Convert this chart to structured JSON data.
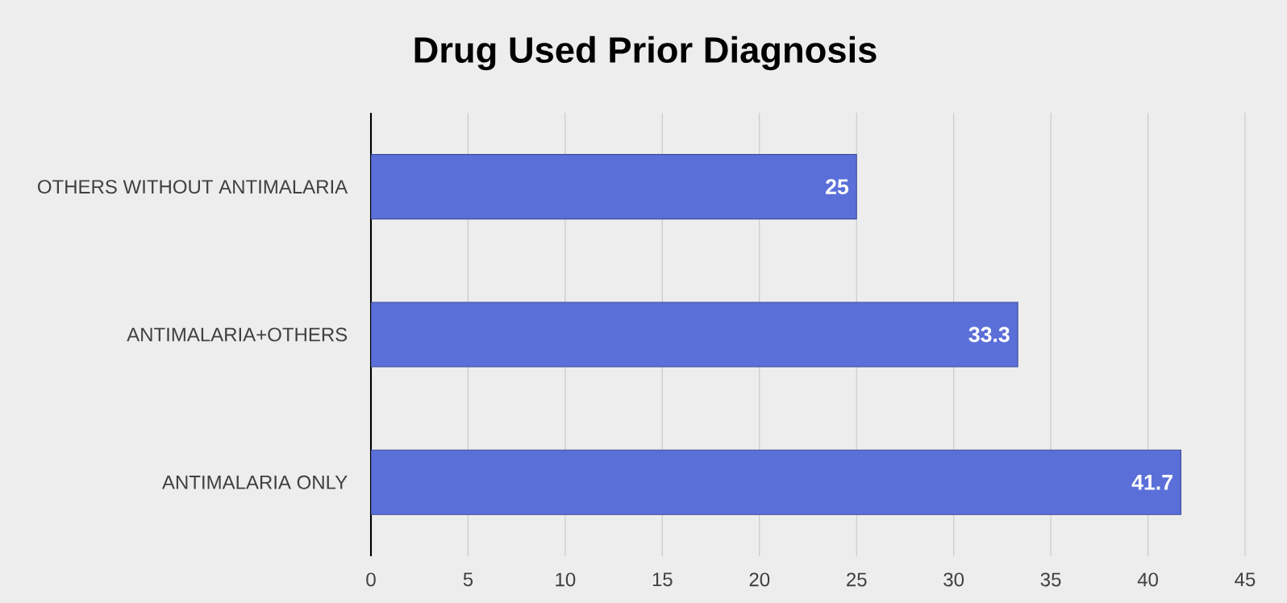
{
  "chart_data": {
    "type": "bar",
    "orientation": "horizontal",
    "title": "Drug Used Prior Diagnosis",
    "categories": [
      "OTHERS WITHOUT ANTIMALARIA",
      "ANTIMALARIA+OTHERS",
      "ANTIMALARIA ONLY"
    ],
    "values": [
      25,
      33.3,
      41.7
    ],
    "color": "#5b6fd9",
    "xlim": [
      0,
      45
    ],
    "xticks": [
      0,
      5,
      10,
      15,
      20,
      25,
      30,
      35,
      40,
      45
    ],
    "grid": "x",
    "data_labels": true
  }
}
